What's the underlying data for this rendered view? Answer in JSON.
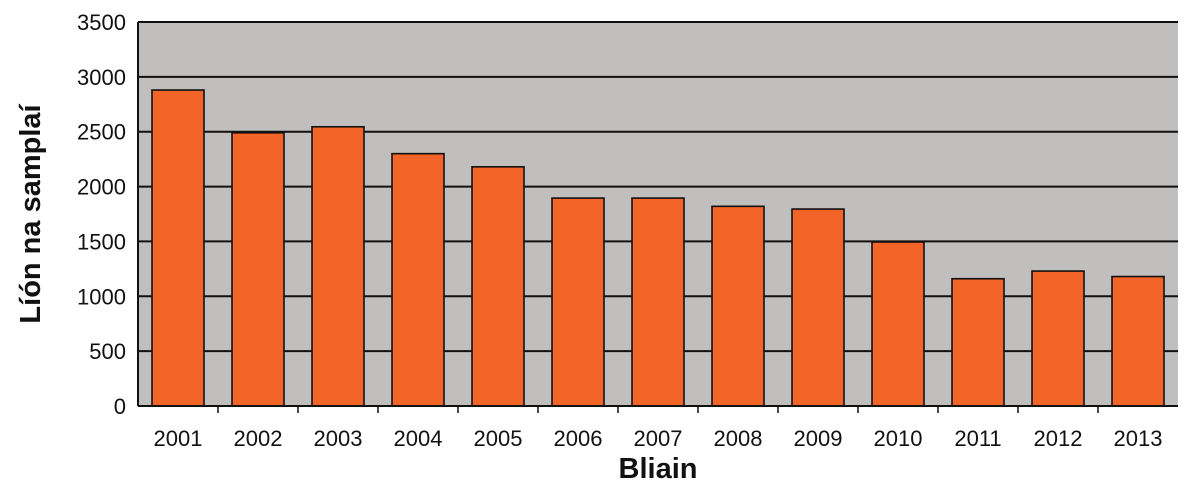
{
  "chart_data": {
    "type": "bar",
    "xlabel": "Bliain",
    "ylabel": "Líón na samplaí",
    "categories": [
      "2001",
      "2002",
      "2003",
      "2004",
      "2005",
      "2006",
      "2007",
      "2008",
      "2009",
      "2010",
      "2011",
      "2012",
      "2013"
    ],
    "values": [
      2880,
      2490,
      2545,
      2300,
      2180,
      1895,
      1895,
      1820,
      1795,
      1495,
      1160,
      1230,
      1180
    ],
    "ylim": [
      0,
      3500
    ],
    "yticks": [
      0,
      500,
      1000,
      1500,
      2000,
      2500,
      3000,
      3500
    ],
    "grid": true,
    "legend": "none",
    "colors": {
      "bar": "#f26428",
      "plot_background": "#c0bfbe",
      "grid": "#111111"
    }
  }
}
